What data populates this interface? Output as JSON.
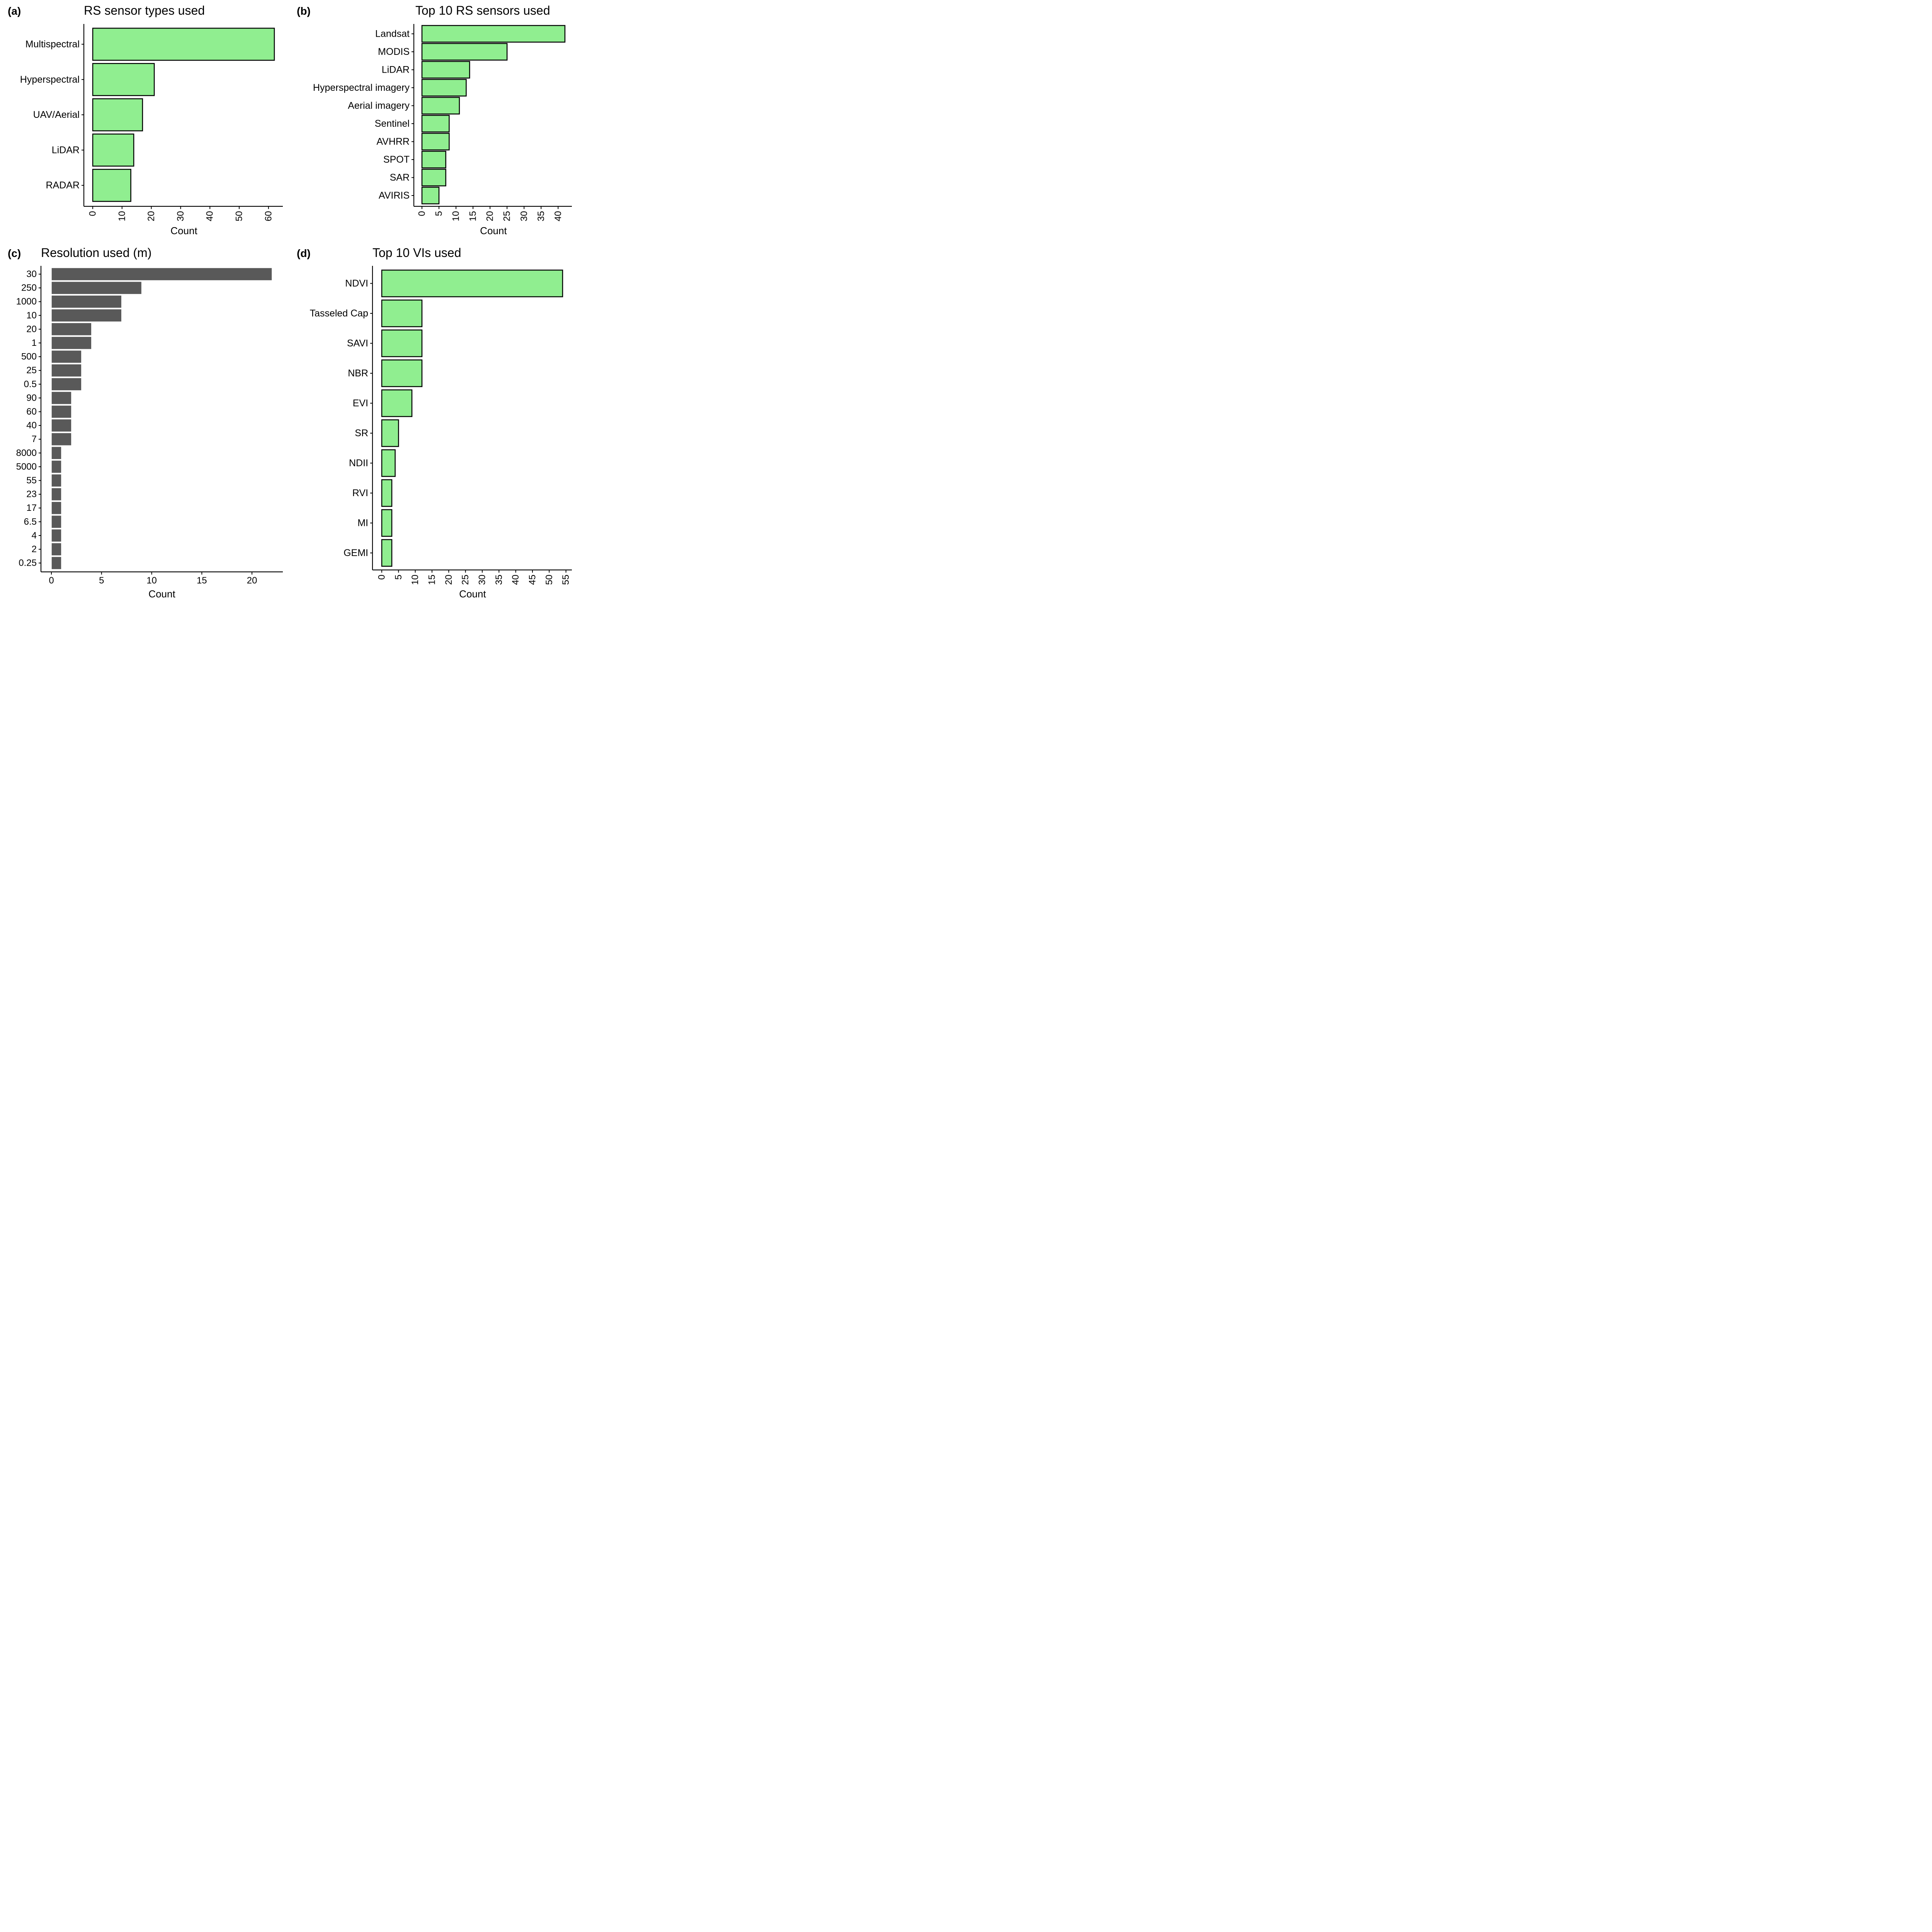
{
  "colors": {
    "fill_green": "#90ee90",
    "fill_gray": "#595959",
    "stroke_dark": "#000000",
    "bar_gap_white": "#ffffff"
  },
  "chart_data": [
    {
      "id": "a",
      "type": "bar",
      "orientation": "horizontal",
      "panel_label": "(a)",
      "title": "RS sensor types used",
      "xlabel": "Count",
      "ylabel": "",
      "categories": [
        "Multispectral",
        "Hyperspectral",
        "UAV/Aerial",
        "LiDAR",
        "RADAR"
      ],
      "values": [
        62,
        21,
        17,
        14,
        13
      ],
      "xlim": [
        0,
        62
      ],
      "x_ticks": [
        0,
        10,
        20,
        30,
        40,
        50,
        60
      ],
      "tick_rotation": "vertical",
      "fill": "#90ee90",
      "grid": false
    },
    {
      "id": "b",
      "type": "bar",
      "orientation": "horizontal",
      "panel_label": "(b)",
      "title": "Top 10 RS sensors used",
      "xlabel": "Count",
      "ylabel": "",
      "categories": [
        "Landsat",
        "MODIS",
        "LiDAR",
        "Hyperspectral imagery",
        "Aerial imagery",
        "Sentinel",
        "AVHRR",
        "SPOT",
        "SAR",
        "AVIRIS"
      ],
      "values": [
        42,
        25,
        14,
        13,
        11,
        8,
        8,
        7,
        7,
        5
      ],
      "xlim": [
        0,
        42
      ],
      "x_ticks": [
        0,
        5,
        10,
        15,
        20,
        25,
        30,
        35,
        40
      ],
      "tick_rotation": "vertical",
      "fill": "#90ee90",
      "grid": false
    },
    {
      "id": "c",
      "type": "bar",
      "orientation": "horizontal",
      "panel_label": "(c)",
      "title": "Resolution used (m)",
      "xlabel": "Count",
      "ylabel": "",
      "categories": [
        "30",
        "250",
        "1000",
        "10",
        "20",
        "1",
        "500",
        "25",
        "0.5",
        "90",
        "60",
        "40",
        "7",
        "8000",
        "5000",
        "55",
        "23",
        "17",
        "6.5",
        "4",
        "2",
        "0.25"
      ],
      "values": [
        22,
        9,
        7,
        7,
        4,
        4,
        3,
        3,
        3,
        2,
        2,
        2,
        2,
        1,
        1,
        1,
        1,
        1,
        1,
        1,
        1,
        1
      ],
      "xlim": [
        0,
        22
      ],
      "x_ticks": [
        0,
        5,
        10,
        15,
        20
      ],
      "tick_rotation": "horizontal",
      "fill": "#595959",
      "grid": false
    },
    {
      "id": "d",
      "type": "bar",
      "orientation": "horizontal",
      "panel_label": "(d)",
      "title": "Top 10 VIs used",
      "xlabel": "Count",
      "ylabel": "",
      "categories": [
        "NDVI",
        "Tasseled Cap",
        "SAVI",
        "NBR",
        "EVI",
        "SR",
        "NDII",
        "RVI",
        "MI",
        "GEMI"
      ],
      "values": [
        54,
        12,
        12,
        12,
        9,
        5,
        4,
        3,
        3,
        3
      ],
      "xlim": [
        0,
        54
      ],
      "x_ticks": [
        0,
        5,
        10,
        15,
        20,
        25,
        30,
        35,
        40,
        45,
        50,
        55
      ],
      "tick_rotation": "vertical",
      "fill": "#90ee90",
      "grid": false
    }
  ]
}
